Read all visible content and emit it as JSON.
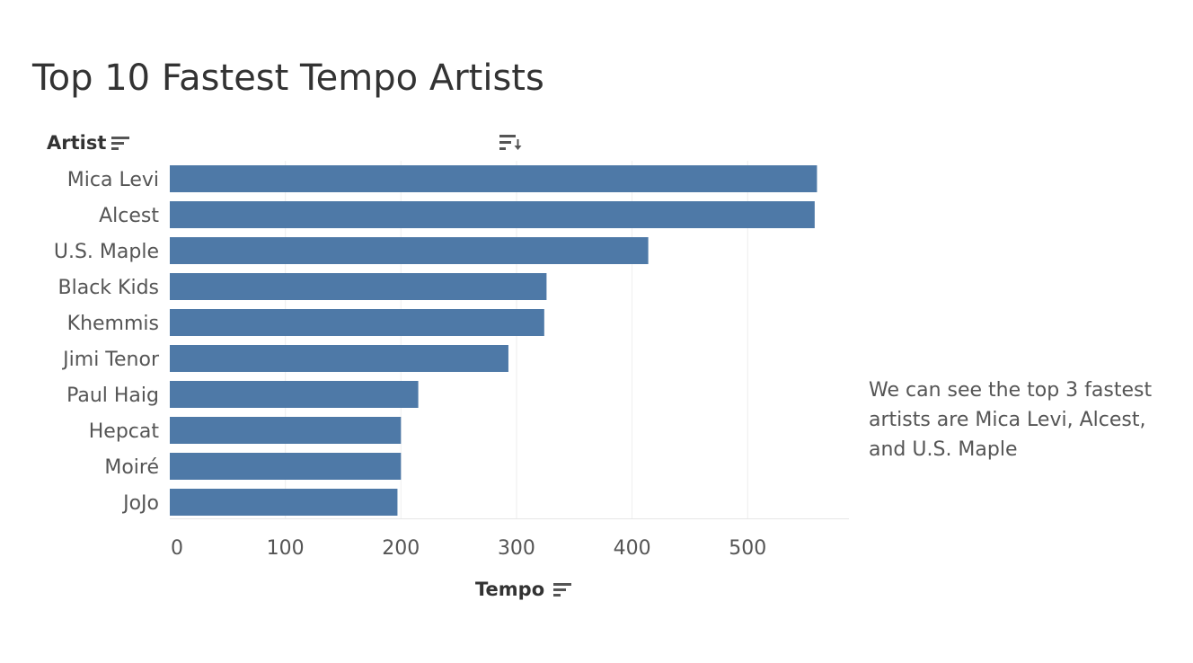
{
  "title": "Top 10 Fastest Tempo Artists",
  "annotation": "We can see the top 3 fastest artists are Mica Levi, Alcest, and U.S. Maple",
  "colors": {
    "bar": "#4e79a7",
    "grid": "#eeeeee",
    "text": "#555555"
  },
  "icons": {
    "row_sort": "sort-descending-icon",
    "column_sort": "sort-descending-arrow-icon",
    "axis_sort": "sort-descending-icon"
  },
  "chart_data": {
    "type": "bar",
    "orientation": "horizontal",
    "row_header": "Artist",
    "xlabel": "Tempo",
    "categories": [
      "Mica Levi",
      "Alcest",
      "U.S. Maple",
      "Black Kids",
      "Khemmis",
      "Jimi Tenor",
      "Paul Haig",
      "Hepcat",
      "Moiré",
      "JoJo"
    ],
    "values": [
      560,
      558,
      414,
      326,
      324,
      293,
      215,
      200,
      200,
      197
    ],
    "xlim": [
      0,
      585
    ],
    "xticks": [
      0,
      100,
      200,
      300,
      400,
      500
    ],
    "grid": true
  }
}
